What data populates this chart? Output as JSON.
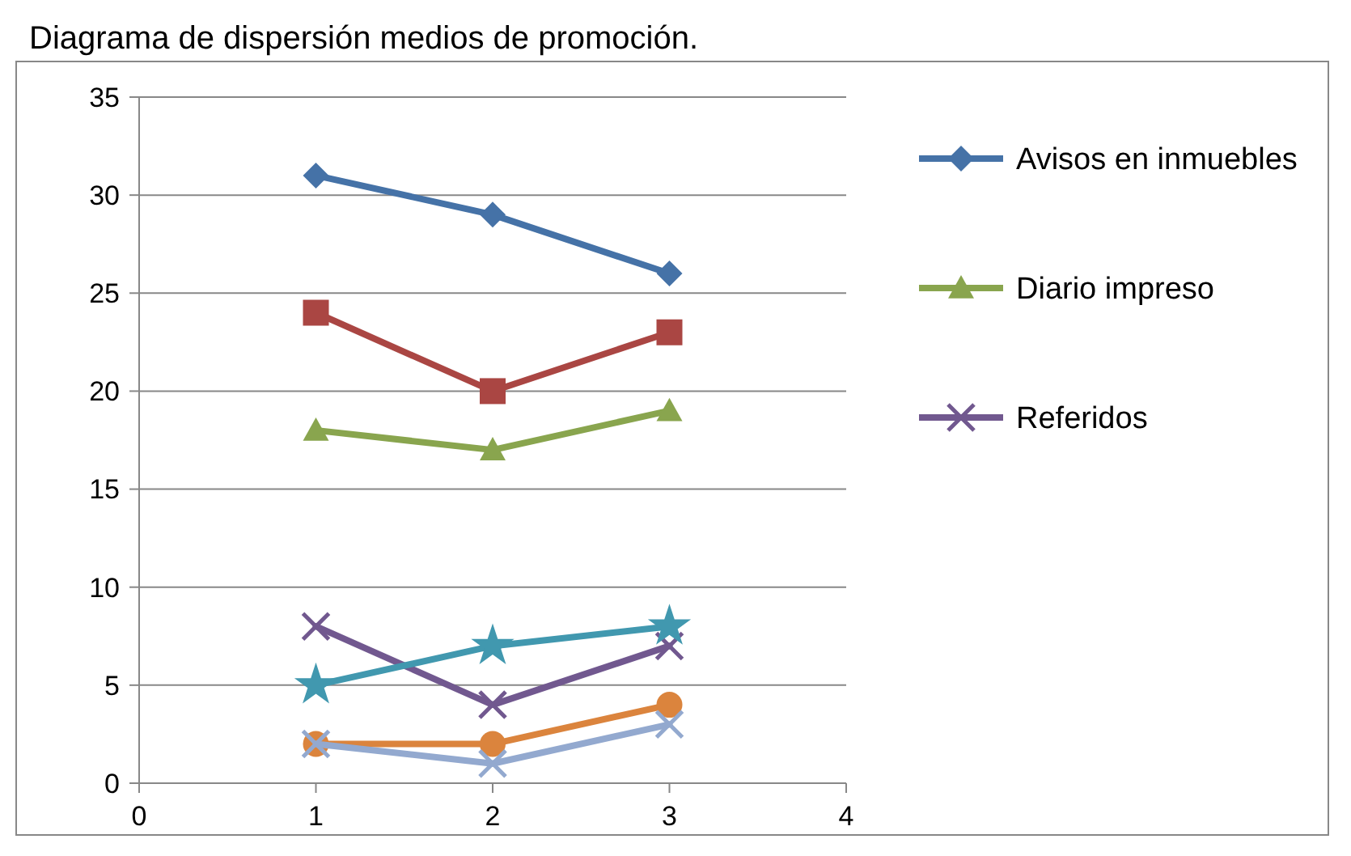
{
  "chart_data": {
    "type": "line",
    "title": "Diagrama de dispersión medios de promoción.",
    "x": [
      1,
      2,
      3
    ],
    "xlim": [
      0,
      4
    ],
    "xticks": [
      0,
      1,
      2,
      3,
      4
    ],
    "ylim": [
      0,
      35
    ],
    "yticks": [
      0,
      5,
      10,
      15,
      20,
      25,
      30,
      35
    ],
    "grid": "y",
    "legend": "right",
    "line_style": "solid",
    "series": [
      {
        "name": "Avisos en inmuebles",
        "color": "#4572a7",
        "marker": "diamond",
        "values": [
          31,
          29,
          26
        ]
      },
      {
        "color": "#aa4643",
        "marker": "square",
        "values": [
          24,
          20,
          23
        ]
      },
      {
        "name": "Diario impreso",
        "color": "#89a54e",
        "marker": "triangle",
        "values": [
          18,
          17,
          19
        ]
      },
      {
        "name": "Referidos",
        "color": "#71588f",
        "marker": "cross",
        "values": [
          8,
          4,
          7
        ]
      },
      {
        "color": "#4198af",
        "marker": "star",
        "values": [
          5,
          7,
          8
        ]
      },
      {
        "color": "#db843d",
        "marker": "circle",
        "values": [
          2,
          2,
          4
        ]
      },
      {
        "color": "#93a9cf",
        "marker": "cross",
        "values": [
          2,
          1,
          3
        ]
      }
    ]
  }
}
